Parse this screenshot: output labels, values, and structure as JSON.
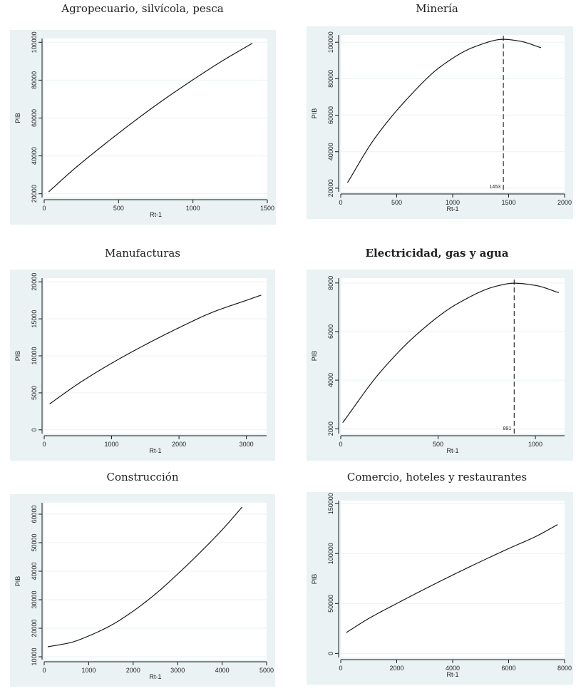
{
  "chart_data": [
    {
      "type": "line",
      "title": "Agropecuario, silvícola, pesca",
      "xlabel": "Rt-1",
      "ylabel": "PIB",
      "xlim": [
        0,
        1500
      ],
      "ylim": [
        18000,
        102000
      ],
      "xticks": [
        0,
        500,
        1000,
        1500
      ],
      "yticks": [
        20000,
        40000,
        60000,
        80000,
        100000
      ],
      "grid": true,
      "series": [
        {
          "x": [
            30,
            200,
            400,
            600,
            800,
            1000,
            1200,
            1400
          ],
          "y": [
            21000,
            33000,
            45800,
            58000,
            69500,
            80200,
            90300,
            99500
          ]
        }
      ]
    },
    {
      "type": "line",
      "title": "Minería",
      "xlabel": "Rt-1",
      "ylabel": "PIB",
      "xlim": [
        0,
        2000
      ],
      "ylim": [
        18000,
        104000
      ],
      "xticks": [
        0,
        500,
        1000,
        1500,
        2000
      ],
      "yticks": [
        20000,
        40000,
        60000,
        80000,
        100000
      ],
      "grid": true,
      "series": [
        {
          "x": [
            60,
            300,
            600,
            900,
            1200,
            1453,
            1600,
            1790
          ],
          "y": [
            23000,
            47000,
            69400,
            87000,
            97600,
            101600,
            100600,
            97000
          ]
        }
      ],
      "annotations": [
        {
          "label": "1453",
          "x": 1453
        }
      ]
    },
    {
      "type": "line",
      "title": "Manufacturas",
      "xlabel": "Rt-1",
      "ylabel": "PIB",
      "xlim": [
        0,
        3300
      ],
      "ylim": [
        -500,
        20500
      ],
      "xticks": [
        0,
        1000,
        2000,
        3000
      ],
      "yticks": [
        0,
        5000,
        10000,
        15000,
        20000
      ],
      "grid": true,
      "series": [
        {
          "x": [
            80,
            500,
            1000,
            1500,
            2000,
            2500,
            3000,
            3220
          ],
          "y": [
            3500,
            6200,
            9000,
            11500,
            13800,
            15900,
            17500,
            18200
          ]
        }
      ]
    },
    {
      "type": "line",
      "title": "Electricidad, gas y agua",
      "xlabel": "Rt-1",
      "ylabel": "PIB",
      "xlim": [
        0,
        1150
      ],
      "ylim": [
        1800,
        8200
      ],
      "xticks": [
        0,
        500,
        1000
      ],
      "yticks": [
        2000,
        4000,
        6000,
        8000
      ],
      "grid": true,
      "series": [
        {
          "x": [
            10,
            200,
            400,
            600,
            800,
            891,
            1000,
            1120
          ],
          "y": [
            2250,
            4300,
            5950,
            7150,
            7870,
            7990,
            7900,
            7600
          ]
        }
      ],
      "annotations": [
        {
          "label": "891",
          "x": 891
        }
      ]
    },
    {
      "type": "line",
      "title": "Construcción",
      "xlabel": "Rt-1",
      "ylabel": "PIB",
      "xlim": [
        0,
        5000
      ],
      "ylim": [
        9000,
        64000
      ],
      "xticks": [
        0,
        1000,
        2000,
        3000,
        4000,
        5000
      ],
      "yticks": [
        10000,
        20000,
        30000,
        40000,
        50000,
        60000
      ],
      "grid": true,
      "series": [
        {
          "x": [
            80,
            600,
            1000,
            1500,
            2000,
            2500,
            3000,
            3500,
            4000,
            4450
          ],
          "y": [
            13500,
            15000,
            17300,
            21000,
            26000,
            32000,
            39000,
            46500,
            54500,
            62500
          ]
        }
      ]
    },
    {
      "type": "line",
      "title": "Comercio, hoteles y restaurantes",
      "xlabel": "Rt-1",
      "ylabel": "PIB",
      "xlim": [
        0,
        8000
      ],
      "ylim": [
        -4000,
        153000
      ],
      "xticks": [
        0,
        2000,
        4000,
        6000,
        8000
      ],
      "yticks": [
        0,
        50000,
        100000,
        150000
      ],
      "grid": true,
      "series": [
        {
          "x": [
            200,
            1000,
            2000,
            3000,
            4000,
            5000,
            6000,
            7000,
            7750
          ],
          "y": [
            21000,
            35000,
            50000,
            64500,
            78500,
            92000,
            105000,
            117500,
            129000
          ]
        }
      ]
    }
  ]
}
